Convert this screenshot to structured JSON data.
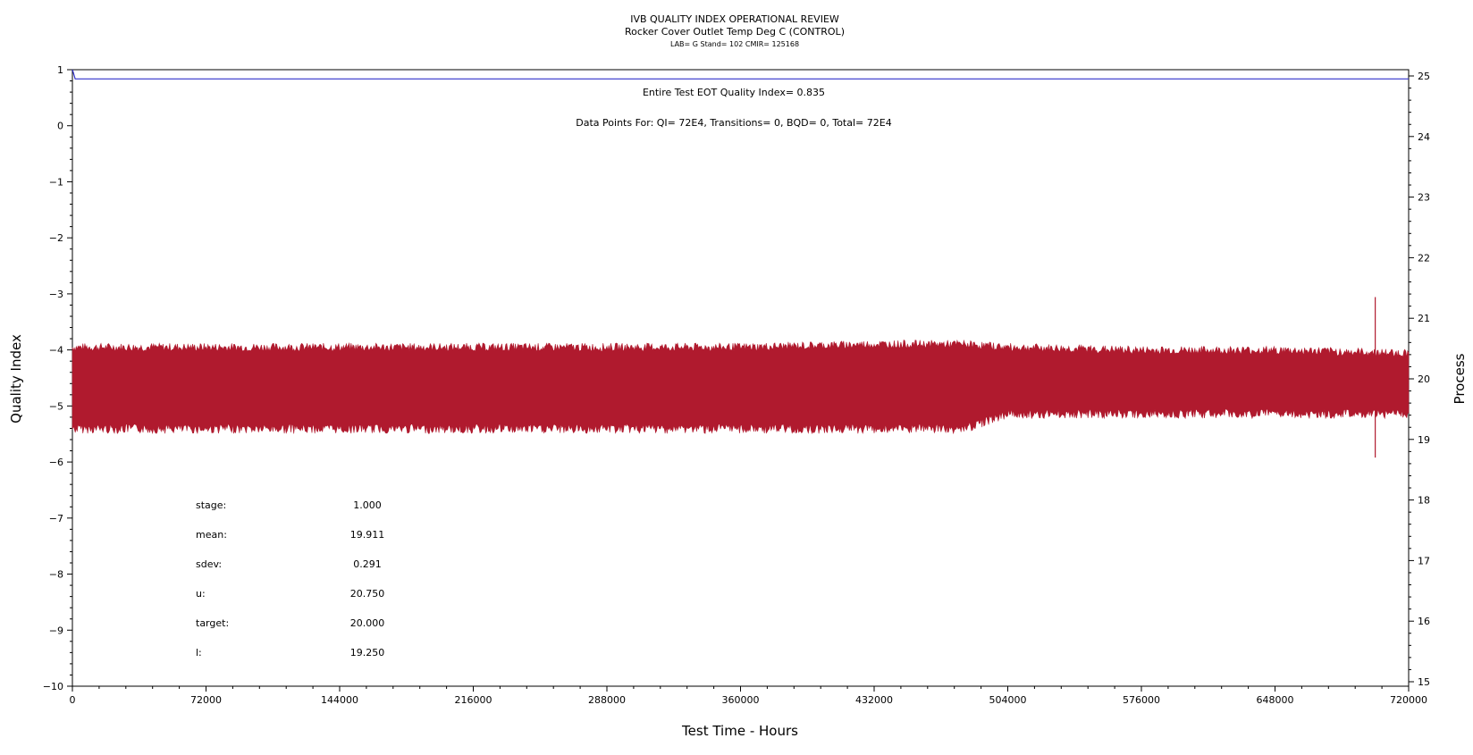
{
  "chart_data": {
    "type": "line",
    "title": "IVB QUALITY INDEX OPERATIONAL REVIEW",
    "subtitle": "Rocker Cover Outlet Temp Deg C (CONTROL)",
    "subtitle2": "LAB= G Stand= 102 CMIR= 125168",
    "annotations": {
      "quality_index": "Entire Test EOT Quality Index=   0.835",
      "data_points": "Data Points For: QI=  72E4, Transitions=     0, BQD=     0, Total=  72E4"
    },
    "xlabel": "Test Time - Hours",
    "ylabel_left": "Quality Index",
    "ylabel_right": "Process",
    "xlim": [
      0,
      720000
    ],
    "ylim_left": [
      -10,
      1
    ],
    "ylim_right": [
      15,
      25
    ],
    "x_ticks": [
      "0",
      "72000",
      "144000",
      "216000",
      "288000",
      "360000",
      "432000",
      "504000",
      "576000",
      "648000",
      "720000"
    ],
    "y_left_ticks": [
      "1",
      "0",
      "-1",
      "-2",
      "-3",
      "-4",
      "-5",
      "-6",
      "-7",
      "-8",
      "-9",
      "-10"
    ],
    "y_right_ticks": [
      "25",
      "24",
      "23",
      "22",
      "21",
      "20",
      "19",
      "18",
      "17",
      "16",
      "15"
    ],
    "series": [
      {
        "axis": "left",
        "color": "#3333cc",
        "x": [
          0,
          500,
          1500,
          720000
        ],
        "y": [
          1.0,
          0.95,
          0.835,
          0.835
        ]
      },
      {
        "axis": "right",
        "color": "#b01a2e",
        "band_x": [
          0,
          72000,
          144000,
          216000,
          288000,
          360000,
          432000,
          480000,
          504000,
          576000,
          648000,
          720000
        ],
        "band_upper": [
          20.5,
          20.5,
          20.5,
          20.5,
          20.5,
          20.5,
          20.55,
          20.55,
          20.5,
          20.45,
          20.45,
          20.4
        ],
        "band_lower": [
          19.2,
          19.2,
          19.2,
          19.2,
          19.2,
          19.2,
          19.2,
          19.2,
          19.45,
          19.45,
          19.45,
          19.45
        ],
        "spikes": [
          {
            "x": 702000,
            "low": 18.7,
            "high": 21.35
          }
        ]
      }
    ],
    "stats": [
      {
        "label": "stage:",
        "value": "1.000"
      },
      {
        "label": "mean:",
        "value": "19.911"
      },
      {
        "label": "sdev:",
        "value": "0.291"
      },
      {
        "label": "u:",
        "value": "20.750"
      },
      {
        "label": "target:",
        "value": "20.000"
      },
      {
        "label": "l:",
        "value": "19.250"
      }
    ],
    "grid": false,
    "colors": {
      "qi_line": "#3333cc",
      "process": "#b01a2e"
    }
  }
}
